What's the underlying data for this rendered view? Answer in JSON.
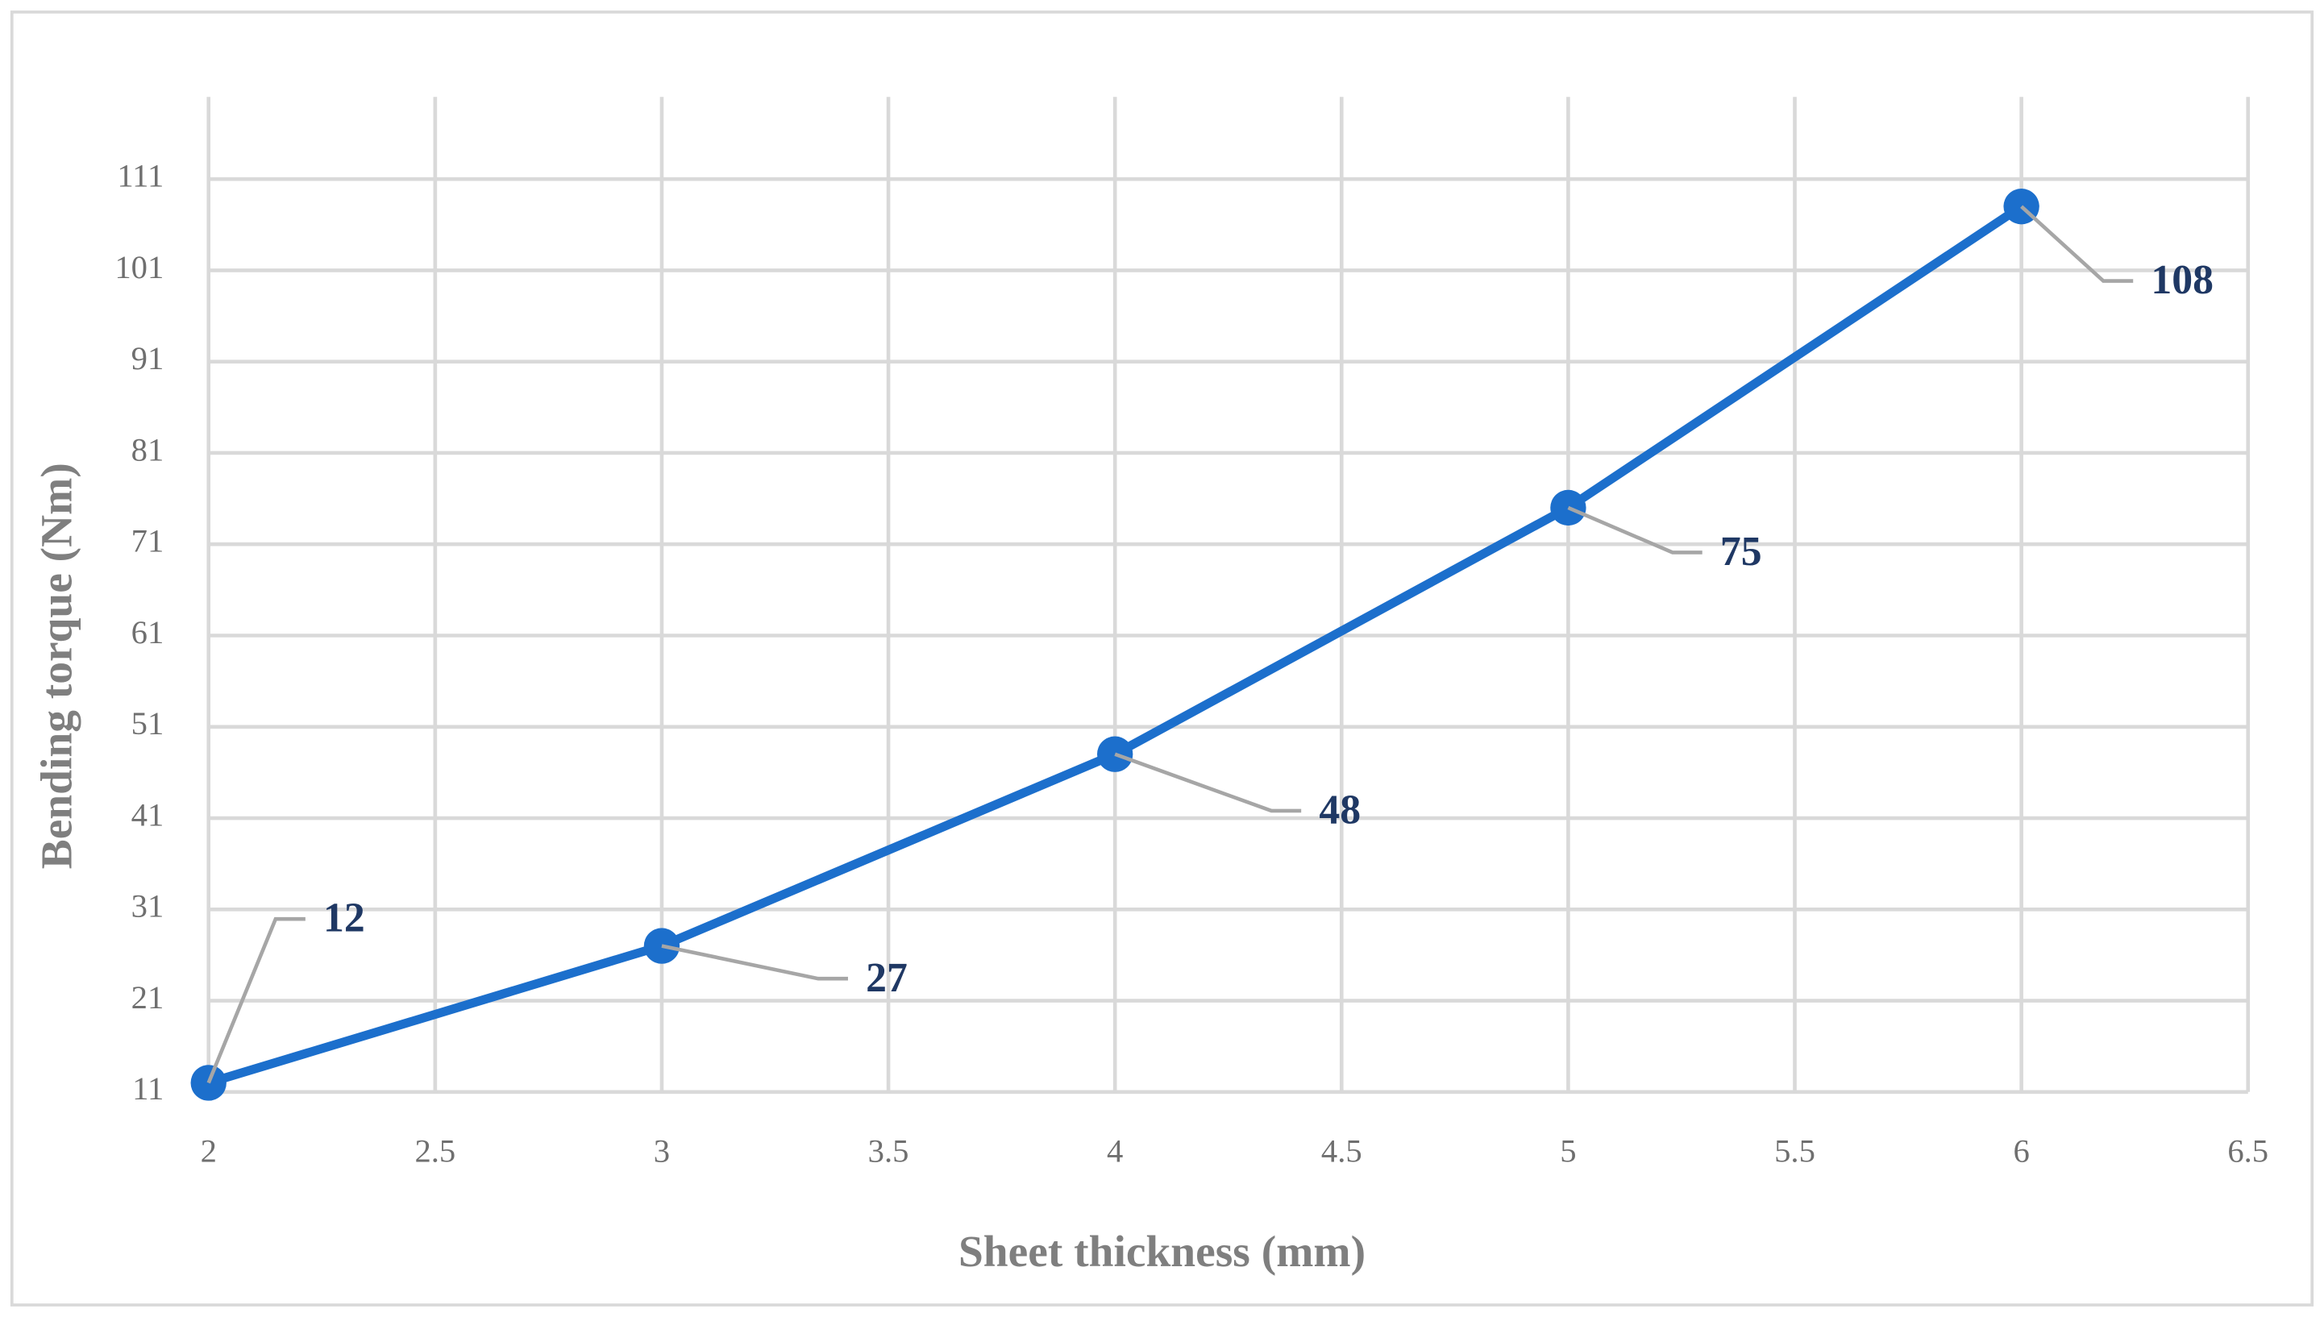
{
  "chart_data": {
    "type": "line",
    "x_label": "Sheet thickness (mm)",
    "y_label": "Bending torque (Nm)",
    "x": [
      2,
      3,
      4,
      5,
      6
    ],
    "series": [
      {
        "name": "Bending torque",
        "color": "#1c6fcc",
        "values": [
          12,
          27,
          48,
          75,
          108
        ]
      }
    ],
    "xlim": [
      2,
      6.5
    ],
    "xticks": [
      2,
      2.5,
      3,
      3.5,
      4,
      4.5,
      5,
      5.5,
      6,
      6.5
    ],
    "ylim": [
      11,
      120
    ],
    "yticks": [
      11,
      21,
      31,
      41,
      51,
      61,
      71,
      81,
      91,
      101,
      111
    ],
    "grid": true,
    "data_labels": true
  }
}
